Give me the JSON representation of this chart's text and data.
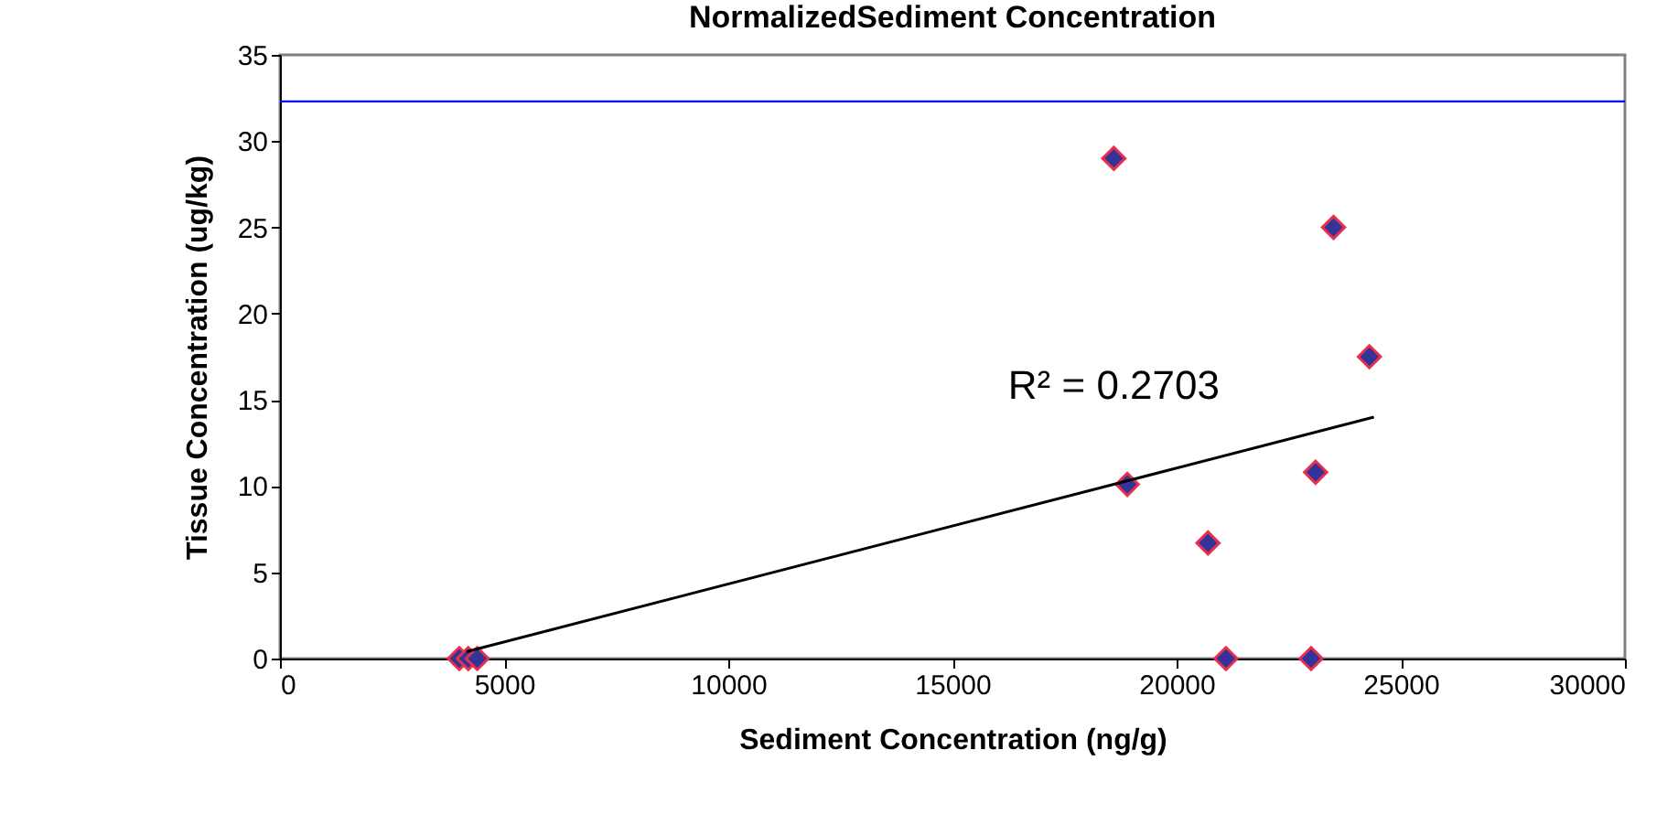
{
  "chart_data": {
    "type": "scatter",
    "title": "NormalizedSediment Concentration",
    "xlabel": "Sediment Concentration (ng/g)",
    "ylabel": "Tissue Concentration (ug/kg)",
    "xlim": [
      0,
      30000
    ],
    "xticks": [
      0,
      5000,
      10000,
      15000,
      20000,
      25000,
      30000
    ],
    "ylim": [
      0,
      35
    ],
    "yticks": [
      0,
      5,
      10,
      15,
      20,
      25,
      30,
      35
    ],
    "grid": false,
    "marker": "diamond",
    "series": [
      {
        "color": "#333399",
        "x": [
          4000,
          4200,
          4400,
          18600,
          23500,
          24300,
          18900,
          23100,
          20700,
          21100,
          23000
        ],
        "values": [
          0,
          0,
          0,
          29,
          25,
          17.5,
          10.1,
          10.8,
          6.7,
          0,
          0
        ]
      },
      {
        "type": "line",
        "marker": "none",
        "color": "#000000",
        "x": [
          4160,
          24400
        ],
        "values": [
          0.4,
          14
        ]
      }
    ],
    "ref_lines": [
      {
        "axis": "y",
        "value": 32.3,
        "color": "#0000ff"
      }
    ],
    "annotations": [
      "R² = 0.2703"
    ]
  }
}
